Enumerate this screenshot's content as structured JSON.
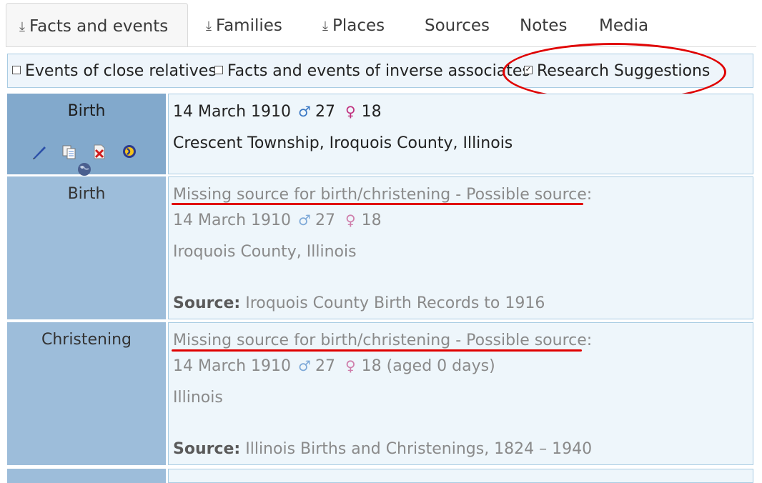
{
  "tabs": [
    {
      "label": "Facts and events",
      "download_icon": true,
      "active": true
    },
    {
      "label": "Families",
      "download_icon": true
    },
    {
      "label": "Places",
      "download_icon": true
    },
    {
      "label": "Sources"
    },
    {
      "label": "Notes"
    },
    {
      "label": "Media"
    }
  ],
  "filters": {
    "close_relatives": {
      "label": "Events of close relatives",
      "checked": false
    },
    "inverse_associates": {
      "label": "Facts and events of inverse associates",
      "checked": false
    },
    "research_suggestions": {
      "label": "Research Suggestions",
      "checked": true
    }
  },
  "facts": [
    {
      "type": "Birth",
      "date": "14 March 1910",
      "male_symbol": "♂",
      "father_age": "27",
      "female_symbol": "♀",
      "mother_age": "18",
      "place": "Crescent Township, Iroquois County, Illinois",
      "actions": [
        "edit-icon",
        "copy-icon",
        "delete-icon",
        "google-maps-icon",
        "globe-icon"
      ]
    },
    {
      "type": "Birth",
      "suggestion": "Missing source for birth/christening - Possible source:",
      "date": "14 March 1910",
      "male_symbol": "♂",
      "father_age": "27",
      "female_symbol": "♀",
      "mother_age": "18",
      "place": "Iroquois County, Illinois",
      "source_label": "Source:",
      "source": "Iroquois County Birth Records to 1916"
    },
    {
      "type": "Christening",
      "suggestion": "Missing source for birth/christening - Possible source:",
      "date": "14 March 1910",
      "male_symbol": "♂",
      "father_age": "27",
      "female_symbol": "♀",
      "mother_age": "18",
      "age_note": "(aged 0 days)",
      "place": "Illinois",
      "source_label": "Source:",
      "source": "Illinois Births and Christenings, 1824 – 1940"
    }
  ],
  "colors": {
    "annotation_red": "#e00000",
    "label_cell": "#82a9cc",
    "suggestion_label_cell": "#9dbdda",
    "value_cell": "#eef6fb",
    "male": "#3b78c4",
    "female": "#c0307e"
  }
}
